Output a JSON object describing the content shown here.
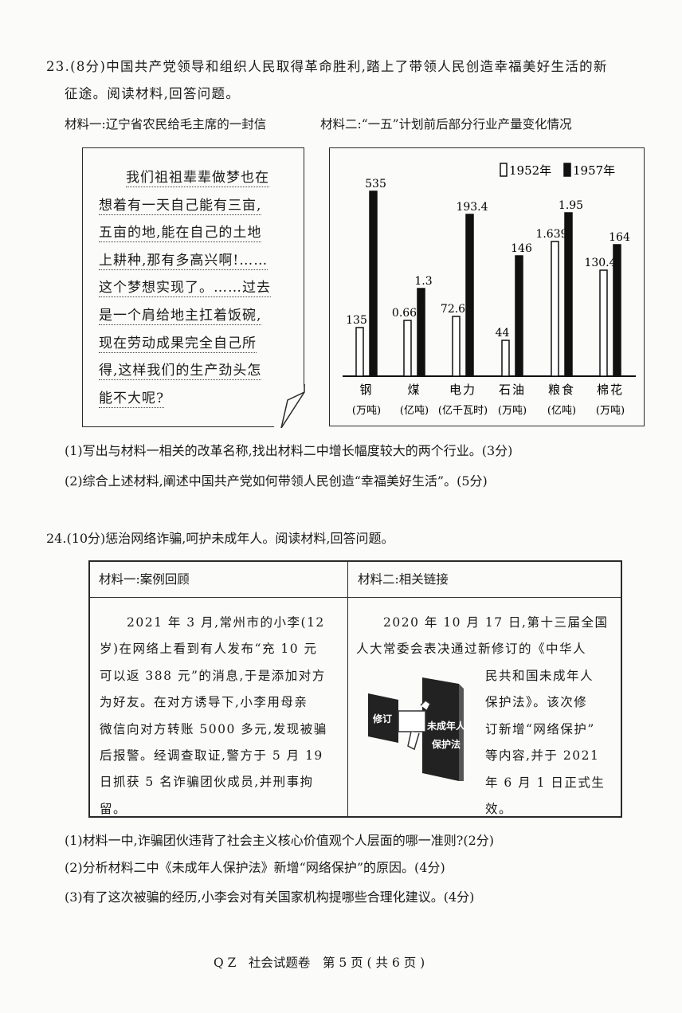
{
  "q23": {
    "stem_line1": "23.(8分)中国共产党领导和组织人民取得革命胜利,踏上了带领人民创造幸福美好生活的新",
    "stem_line2": "征途。阅读材料,回答问题。",
    "material1_title": "材料一:辽宁省农民给毛主席的一封信",
    "material2_title": "材料二:“一五”计划前后部分行业产量变化情况",
    "letter_lines": [
      "我们祖祖辈辈做梦也在",
      "想着有一天自己能有三亩,",
      "五亩的地,能在自己的土地",
      "上耕种,那有多高兴啊!……",
      "这个梦想实现了。……过去",
      "是一个肩给地主扛着饭碗,",
      "现在劳动成果完全自己所",
      "得,这样我们的生产劲头怎",
      "能不大呢?"
    ],
    "questions": [
      "(1)写出与材料一相关的改革名称,找出材料二中增长幅度较大的两个行业。(3分)",
      "(2)综合上述材料,阐述中国共产党如何带领人民创造“幸福美好生活”。(5分)"
    ]
  },
  "chart_data": {
    "type": "bar",
    "legend_position": "top-right",
    "categories": [
      "钢",
      "煤",
      "电力",
      "石油",
      "粮食",
      "棉花"
    ],
    "units": [
      "(万吨)",
      "(亿吨)",
      "(亿千瓦时)",
      "(万吨)",
      "(亿吨)",
      "(万吨)"
    ],
    "series": [
      {
        "name": "1952年",
        "fill": "#ffffff",
        "values": [
          135,
          0.66,
          72.6,
          44,
          1.639,
          130.4
        ],
        "labels": [
          "135",
          "0.66",
          "72.6",
          "44",
          "1.639",
          "130.4"
        ]
      },
      {
        "name": "1957年",
        "fill": "#111111",
        "values": [
          535,
          1.3,
          193.4,
          146,
          1.95,
          164
        ],
        "labels": [
          "535",
          "1.3",
          "193.4",
          "146",
          "1.95",
          "164"
        ]
      }
    ]
  },
  "q24": {
    "stem": "24.(10分)惩治网络诈骗,呵护未成年人。阅读材料,回答问题。",
    "material1_header": "材料一:案例回顾",
    "material2_header": "材料二:相关链接",
    "material1_lines": [
      "　　2021 年 3 月,常州市的小李(12",
      "岁)在网络上看到有人发布“充 10 元",
      "可以返 388 元”的消息,于是添加对方",
      "为好友。在对方诱导下,小李用母亲",
      "微信向对方转账 5000 多元,发现被骗",
      "后报警。经调查取证,警方于 5 月 19",
      "日抓获 5 名诈骗团伙成员,并刑事拘",
      "留。"
    ],
    "material2_lines_full": [
      "　　2020 年 10 月 17 日,第十三届全国",
      "人大常委会表决通过新修订的《中华人"
    ],
    "material2_lines_side": [
      "民共和国未成年人",
      "保护法》。该次修",
      "订新增“网络保护”",
      "等内容,并于 2021",
      "年 6 月 1 日正式生",
      "效。"
    ],
    "image_labels": {
      "tag": "修订",
      "book_line1": "未成年人",
      "book_line2": "保护法"
    },
    "questions": [
      "(1)材料一中,诈骗团伙违背了社会主义核心价值观个人层面的哪一准则?(2分)",
      "(2)分析材料二中《未成年人保护法》新增“网络保护”的原因。(4分)",
      "(3)有了这次被骗的经历,小李会对有关国家机构提哪些合理化建议。(4分)"
    ]
  },
  "footer": "Q Z　社会试题卷　第 5 页 ( 共 6 页 )"
}
